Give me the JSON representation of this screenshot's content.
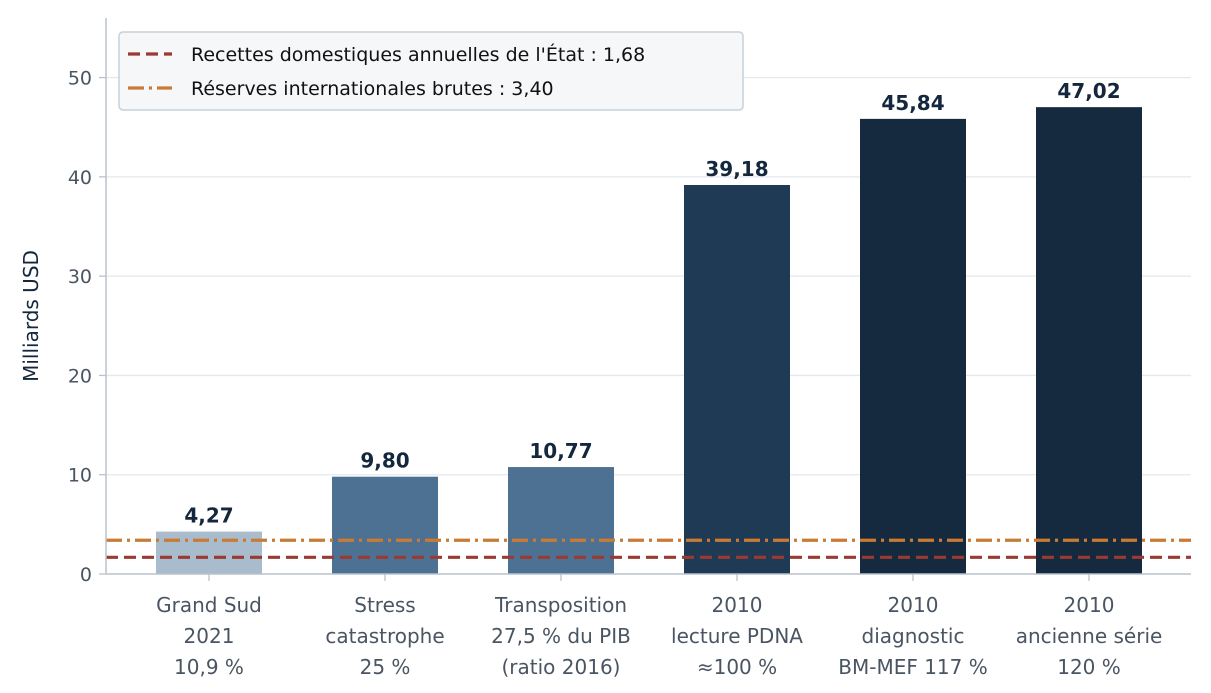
{
  "chart_data": {
    "type": "bar",
    "title": "",
    "xlabel": "",
    "ylabel": "Milliards USD",
    "ylim": [
      0,
      56
    ],
    "yticks": [
      0,
      10,
      20,
      30,
      40,
      50
    ],
    "grid": true,
    "legend_position": "top-left",
    "categories": [
      [
        "Grand Sud",
        "2021",
        "10,9 %"
      ],
      [
        "Stress",
        "catastrophe",
        "25 %"
      ],
      [
        "Transposition",
        "27,5 % du PIB",
        "(ratio 2016)"
      ],
      [
        "2010",
        "lecture PDNA",
        "≈100 %"
      ],
      [
        "2010",
        "diagnostic",
        "BM-MEF 117 %"
      ],
      [
        "2010",
        "ancienne série",
        "120 %"
      ]
    ],
    "values": [
      4.27,
      9.8,
      10.77,
      39.18,
      45.84,
      47.02
    ],
    "value_labels": [
      "4,27",
      "9,80",
      "10,77",
      "39,18",
      "45,84",
      "47,02"
    ],
    "bar_colors": [
      "#a9bccd",
      "#4d7193",
      "#4d7193",
      "#1e3a55",
      "#15293f",
      "#15293f"
    ],
    "reference_lines": [
      {
        "label": "Recettes domestiques annuelles de l'État : 1,68",
        "value": 1.68,
        "color": "#9b3a33",
        "style": "dashed"
      },
      {
        "label": "Réserves internationales brutes : 3,40",
        "value": 3.4,
        "color": "#c97b35",
        "style": "dashdot"
      }
    ]
  }
}
